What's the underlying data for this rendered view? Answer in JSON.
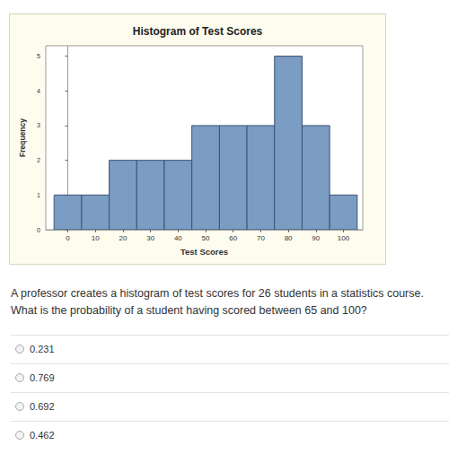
{
  "chart_data": {
    "type": "histogram",
    "title": "Histogram of Test Scores",
    "x_label": "Test Scores",
    "y_label": "Frequency",
    "bins": [
      -5,
      5,
      15,
      25,
      35,
      45,
      55,
      65,
      75,
      85,
      95,
      105
    ],
    "counts": [
      1,
      1,
      2,
      2,
      2,
      3,
      3,
      3,
      5,
      3,
      1
    ],
    "color": "#7b9cc3",
    "xlim": [
      -8,
      107
    ],
    "xticks": [
      0,
      10,
      20,
      30,
      40,
      50,
      60,
      70,
      80,
      90,
      100
    ],
    "ylim": [
      0,
      5.3
    ],
    "yticks": [
      0,
      1,
      2,
      3,
      4,
      5
    ],
    "grid": false
  },
  "question": [
    "A professor creates a histogram of test scores for 26 students in a statistics course.",
    "What is the probability of a student having scored between 65 and 100?"
  ],
  "options": [
    "0.231",
    "0.769",
    "0.692",
    "0.462"
  ]
}
